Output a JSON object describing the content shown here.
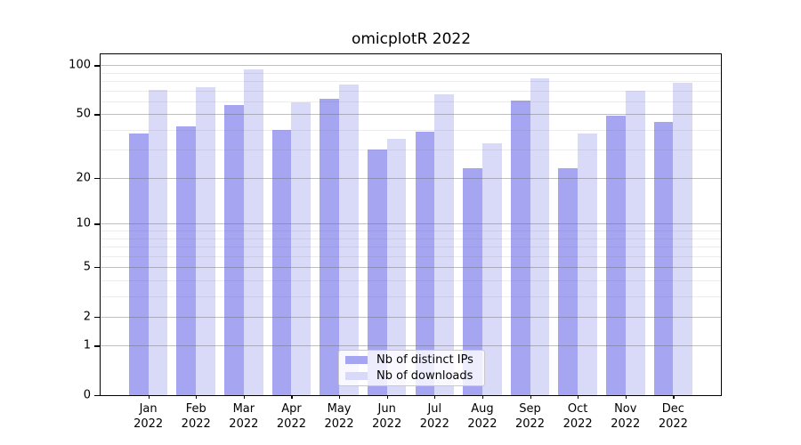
{
  "chart_data": {
    "type": "bar",
    "title": "omicplotR 2022",
    "scale": "log1p",
    "categories": [
      "Jan",
      "Feb",
      "Mar",
      "Apr",
      "May",
      "Jun",
      "Jul",
      "Aug",
      "Sep",
      "Oct",
      "Nov",
      "Dec"
    ],
    "year": "2022",
    "series": [
      {
        "name": "Nb of distinct IPs",
        "color": "#a5a5f2",
        "values": [
          38,
          42,
          57,
          40,
          62,
          30,
          39,
          23,
          61,
          23,
          49,
          45
        ]
      },
      {
        "name": "Nb of downloads",
        "color": "#d9d9f8",
        "values": [
          71,
          73,
          94,
          59,
          76,
          35,
          66,
          33,
          83,
          38,
          70,
          78
        ]
      }
    ],
    "xlabel": "",
    "ylabel": "",
    "ylim": [
      0,
      117
    ],
    "y_major_ticks": [
      0,
      1,
      2,
      5,
      10,
      20,
      50,
      100
    ],
    "y_minor_ticks": [
      3,
      4,
      6,
      7,
      8,
      9,
      30,
      40,
      60,
      70,
      80,
      90
    ],
    "grid": "on",
    "legend_position": "lower center"
  }
}
